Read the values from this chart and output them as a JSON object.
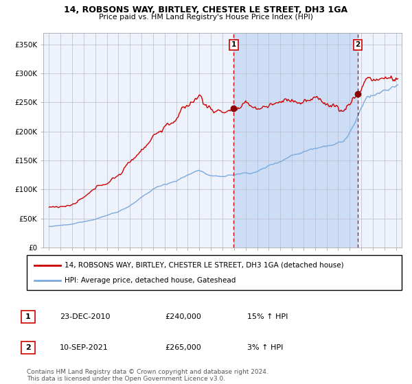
{
  "title": "14, ROBSONS WAY, BIRTLEY, CHESTER LE STREET, DH3 1GA",
  "subtitle": "Price paid vs. HM Land Registry's House Price Index (HPI)",
  "sale1_date": "23-DEC-2010",
  "sale1_price": 240000,
  "sale1_label": "15% ↑ HPI",
  "sale2_date": "10-SEP-2021",
  "sale2_price": 265000,
  "sale2_label": "3% ↑ HPI",
  "sale1_x": 2010.97,
  "sale2_x": 2021.71,
  "ylabel_ticks": [
    "£0",
    "£50K",
    "£100K",
    "£150K",
    "£200K",
    "£250K",
    "£300K",
    "£350K"
  ],
  "ytick_vals": [
    0,
    50000,
    100000,
    150000,
    200000,
    250000,
    300000,
    350000
  ],
  "xmin": 1994.5,
  "xmax": 2025.5,
  "ymin": 0,
  "ymax": 370000,
  "hpi_color": "#7aaadd",
  "price_color": "#cc0000",
  "bg_color": "#ffffff",
  "plot_bg": "#eef2fb",
  "shade_color": "#ccddf5",
  "grid_color": "#bbbbcc",
  "marker_color": "#8b0000",
  "footnote": "Contains HM Land Registry data © Crown copyright and database right 2024.\nThis data is licensed under the Open Government Licence v3.0.",
  "legend1": "14, ROBSONS WAY, BIRTLEY, CHESTER LE STREET, DH3 1GA (detached house)",
  "legend2": "HPI: Average price, detached house, Gateshead"
}
